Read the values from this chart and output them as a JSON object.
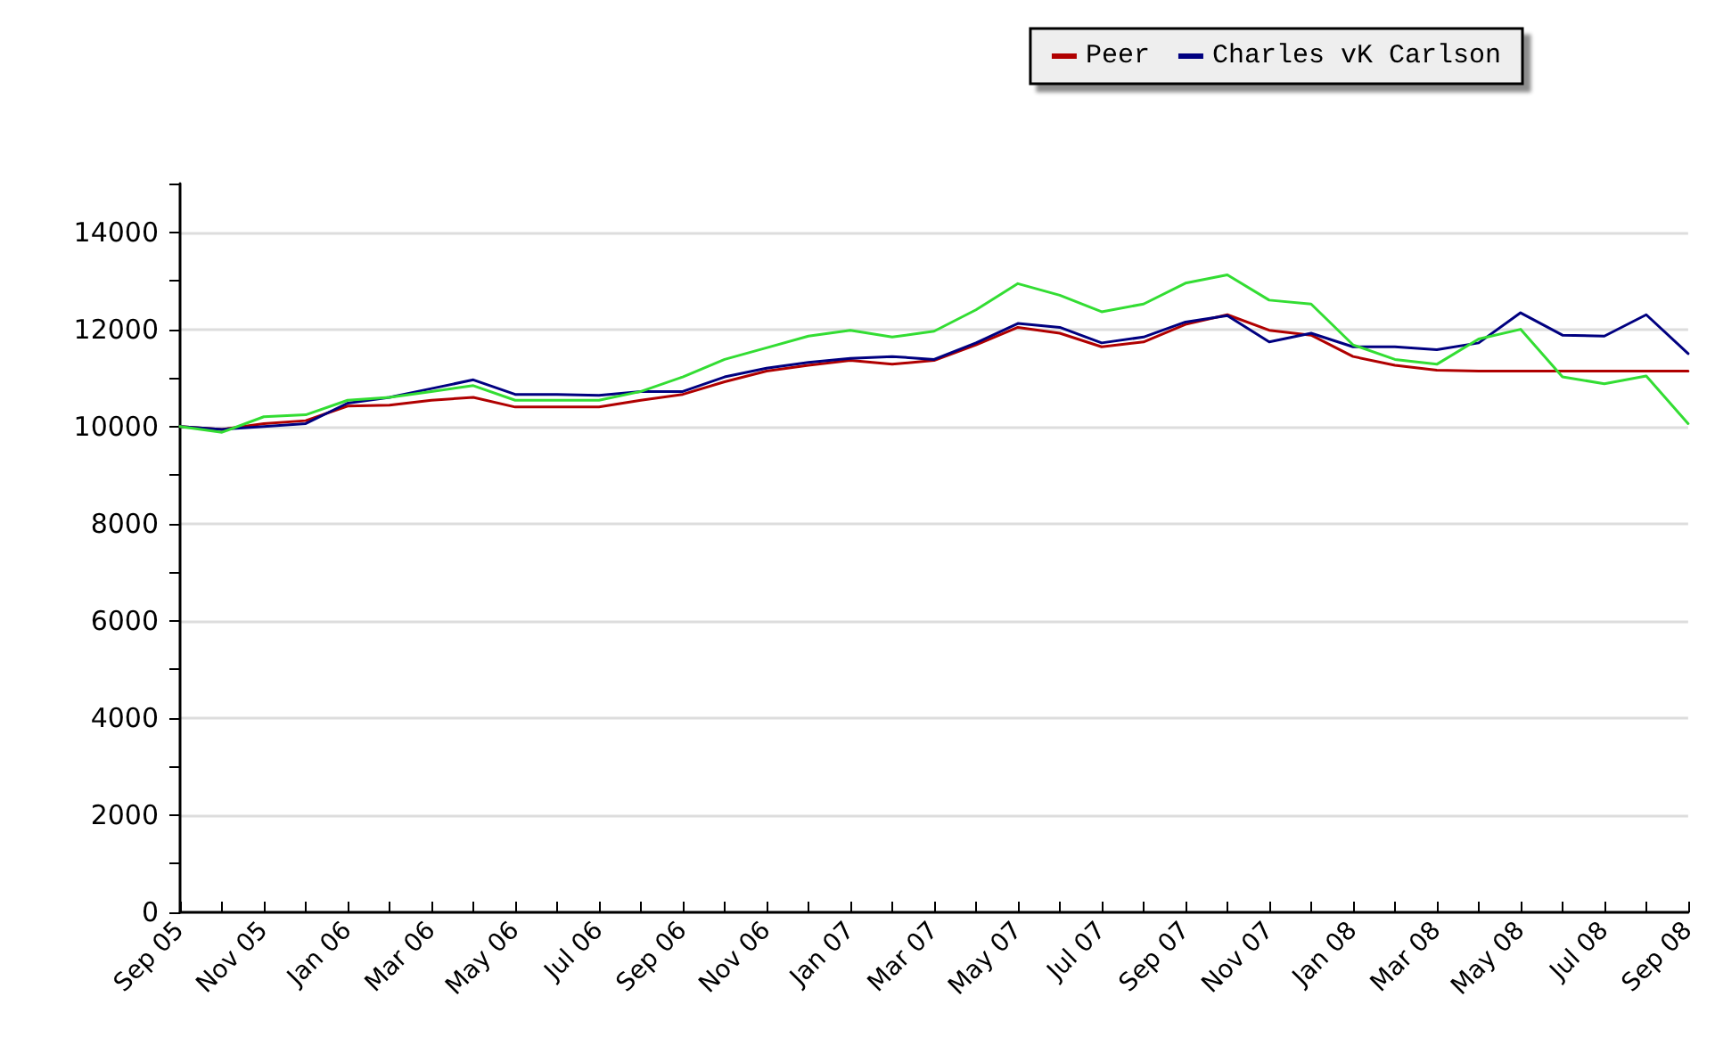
{
  "chart_data": {
    "type": "line",
    "categories": [
      "Sep 05",
      null,
      "Nov 05",
      null,
      "Jan 06",
      null,
      "Mar 06",
      null,
      "May 06",
      null,
      "Jul 06",
      null,
      "Sep 06",
      null,
      "Nov 06",
      null,
      "Jan 07",
      null,
      "Mar 07",
      null,
      "May 07",
      null,
      "Jul 07",
      null,
      "Sep 07",
      null,
      "Nov 07",
      null,
      "Jan 08",
      null,
      "Mar 08",
      null,
      "May 08",
      null,
      "Jul 08",
      null,
      "Sep 08"
    ],
    "series": [
      {
        "name": "Peer",
        "color": "#b00000",
        "values": [
          10000,
          9940,
          10060,
          10120,
          10420,
          10440,
          10540,
          10600,
          10400,
          10400,
          10400,
          10540,
          10660,
          10920,
          11140,
          11260,
          11360,
          11280,
          11360,
          11680,
          12040,
          11920,
          11640,
          11740,
          12100,
          12300,
          11980,
          11880,
          11440,
          11260,
          11160,
          11140,
          11140,
          11140,
          11140,
          11140,
          11140
        ]
      },
      {
        "name": "Charles vK Carlson",
        "color": "#000080",
        "values": [
          10000,
          9940,
          10000,
          10060,
          10480,
          10600,
          10780,
          10960,
          10660,
          10660,
          10640,
          10720,
          10720,
          11020,
          11200,
          11320,
          11400,
          11440,
          11380,
          11720,
          12120,
          12040,
          11720,
          11840,
          12150,
          12280,
          11740,
          11920,
          11640,
          11640,
          11580,
          11720,
          12340,
          11880,
          11860,
          12300,
          11500
        ]
      },
      {
        "color": "#33dd33",
        "values": [
          10000,
          9880,
          10200,
          10240,
          10540,
          10600,
          10720,
          10840,
          10540,
          10540,
          10540,
          10720,
          11020,
          11380,
          11620,
          11860,
          11980,
          11840,
          11960,
          12400,
          12940,
          12700,
          12360,
          12520,
          12950,
          13120,
          12600,
          12520,
          11680,
          11380,
          11280,
          11800,
          12000,
          11020,
          10880,
          11040,
          10060
        ]
      }
    ],
    "ylim": [
      0,
      15000
    ],
    "yticks": [
      0,
      {
        "value": 1000,
        "label": null
      },
      2000,
      {
        "value": 3000,
        "label": null
      },
      4000,
      {
        "value": 5000,
        "label": null
      },
      6000,
      {
        "value": 7000,
        "label": null
      },
      8000,
      {
        "value": 9000,
        "label": null
      },
      10000,
      {
        "value": 11000,
        "label": null
      },
      12000,
      {
        "value": 13000,
        "label": null
      },
      14000,
      {
        "value": 15000,
        "label": null
      }
    ],
    "grid": "y",
    "legend": "top right",
    "marker": "none",
    "line_style": "solid"
  }
}
